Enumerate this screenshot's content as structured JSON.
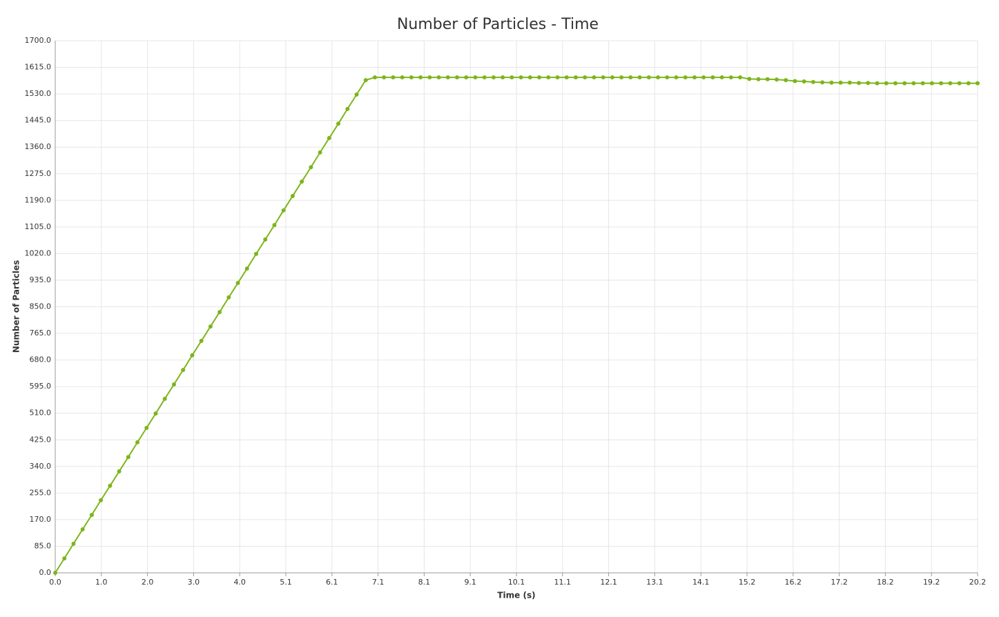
{
  "chart_data": {
    "type": "line",
    "title": "Number of Particles - Time",
    "xlabel": "Time (s)",
    "ylabel": "Number of Particles",
    "x": [
      0,
      0.2,
      0.4,
      0.6,
      0.8,
      1.0,
      1.2,
      1.4,
      1.6,
      1.8,
      2.0,
      2.2,
      2.4,
      2.6,
      2.8,
      3.0,
      3.2,
      3.4,
      3.6,
      3.8,
      4.0,
      4.2,
      4.4,
      4.6,
      4.8,
      5.0,
      5.2,
      5.4,
      5.6,
      5.8,
      6.0,
      6.2,
      6.4,
      6.6,
      6.8,
      7.0,
      7.2,
      7.4,
      7.6,
      7.8,
      8.0,
      8.2,
      8.4,
      8.6,
      8.8,
      9.0,
      9.2,
      9.4,
      9.6,
      9.8,
      10.0,
      10.2,
      10.4,
      10.6,
      10.8,
      11.0,
      11.2,
      11.4,
      11.6,
      11.8,
      12.0,
      12.2,
      12.4,
      12.6,
      12.8,
      13.0,
      13.2,
      13.4,
      13.6,
      13.8,
      14.0,
      14.2,
      14.4,
      14.6,
      14.8,
      15.0,
      15.2,
      15.4,
      15.6,
      15.8,
      16.0,
      16.2,
      16.4,
      16.6,
      16.8,
      17.0,
      17.2,
      17.4,
      17.6,
      17.8,
      18.0,
      18.2,
      18.4,
      18.6,
      18.8,
      19.0,
      19.2,
      19.4,
      19.6,
      19.8,
      20.0,
      20.2
    ],
    "series": [
      {
        "name": "Number of Particles",
        "color": "#7db51a",
        "values": [
          0,
          46,
          93,
          139,
          185,
          232,
          278,
          324,
          370,
          417,
          463,
          509,
          556,
          602,
          648,
          695,
          741,
          787,
          833,
          880,
          926,
          972,
          1019,
          1065,
          1111,
          1158,
          1204,
          1250,
          1296,
          1343,
          1389,
          1435,
          1482,
          1528,
          1574,
          1583,
          1583,
          1583,
          1583,
          1583,
          1583,
          1583,
          1583,
          1583,
          1583,
          1583,
          1583,
          1583,
          1583,
          1583,
          1583,
          1583,
          1583,
          1583,
          1583,
          1583,
          1583,
          1583,
          1583,
          1583,
          1583,
          1583,
          1583,
          1583,
          1583,
          1583,
          1583,
          1583,
          1583,
          1583,
          1583,
          1583,
          1583,
          1583,
          1583,
          1583,
          1578,
          1577,
          1577,
          1576,
          1574,
          1571,
          1570,
          1568,
          1567,
          1566,
          1566,
          1566,
          1565,
          1565,
          1564,
          1564,
          1564,
          1564,
          1564,
          1564,
          1564,
          1564,
          1564,
          1564,
          1564,
          1564
        ]
      }
    ],
    "xlim": [
      0,
      20.2
    ],
    "xticks": [
      {
        "value": 0,
        "label": "0.0"
      },
      {
        "value": 1.01,
        "label": "1.0"
      },
      {
        "value": 2.02,
        "label": "2.0"
      },
      {
        "value": 3.03,
        "label": "3.0"
      },
      {
        "value": 4.04,
        "label": "4.0"
      },
      {
        "value": 5.05,
        "label": "5.1"
      },
      {
        "value": 6.06,
        "label": "6.1"
      },
      {
        "value": 7.07,
        "label": "7.1"
      },
      {
        "value": 8.08,
        "label": "8.1"
      },
      {
        "value": 9.09,
        "label": "9.1"
      },
      {
        "value": 10.1,
        "label": "10.1"
      },
      {
        "value": 11.11,
        "label": "11.1"
      },
      {
        "value": 12.12,
        "label": "12.1"
      },
      {
        "value": 13.13,
        "label": "13.1"
      },
      {
        "value": 14.14,
        "label": "14.1"
      },
      {
        "value": 15.15,
        "label": "15.2"
      },
      {
        "value": 16.16,
        "label": "16.2"
      },
      {
        "value": 17.17,
        "label": "17.2"
      },
      {
        "value": 18.18,
        "label": "18.2"
      },
      {
        "value": 19.19,
        "label": "19.2"
      },
      20.2
    ],
    "ylim": [
      0,
      1700
    ],
    "yticks": [
      {
        "value": 0,
        "label": "0.0"
      },
      {
        "value": 85,
        "label": "85.0"
      },
      {
        "value": 170,
        "label": "170.0"
      },
      {
        "value": 255,
        "label": "255.0"
      },
      {
        "value": 340,
        "label": "340.0"
      },
      {
        "value": 425,
        "label": "425.0"
      },
      {
        "value": 510,
        "label": "510.0"
      },
      {
        "value": 595,
        "label": "595.0"
      },
      {
        "value": 680,
        "label": "680.0"
      },
      {
        "value": 765,
        "label": "765.0"
      },
      {
        "value": 850,
        "label": "850.0"
      },
      {
        "value": 935,
        "label": "935.0"
      },
      {
        "value": 1020,
        "label": "1020.0"
      },
      {
        "value": 1105,
        "label": "1105.0"
      },
      {
        "value": 1190,
        "label": "1190.0"
      },
      {
        "value": 1275,
        "label": "1275.0"
      },
      {
        "value": 1360,
        "label": "1360.0"
      },
      {
        "value": 1445,
        "label": "1445.0"
      },
      {
        "value": 1530,
        "label": "1530.0"
      },
      {
        "value": 1615,
        "label": "1615.0"
      },
      {
        "value": 1700,
        "label": "1700.0"
      }
    ],
    "grid": true
  }
}
